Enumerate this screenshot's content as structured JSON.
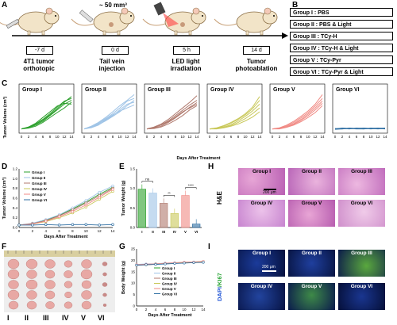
{
  "panels": {
    "A": "A",
    "B": "B",
    "C": "C",
    "D": "D",
    "E": "E",
    "F": "F",
    "G": "G",
    "H": "H",
    "I": "I"
  },
  "timeline": {
    "steps": [
      {
        "day": "-7 d",
        "label": "4T1 tumor\northotopic"
      },
      {
        "day": "0 d",
        "label": "Tail vein\ninjection"
      },
      {
        "day": "5 h",
        "label": "LED light\nirradiation"
      },
      {
        "day": "14 d",
        "label": "Tumor\nphotoablation"
      }
    ],
    "volume_note": "~ 50 mm³"
  },
  "groups_table": [
    "Group I   : PBS",
    "Group II  : PBS & Light",
    "Group III : TCy-H",
    "Group IV  : TCy-H & Light",
    "Group V   : TCy-Pyr",
    "Group VI  : TCy-Pyr & Light"
  ],
  "colors": {
    "I": "#2ca02c",
    "II": "#9ec3e6",
    "III": "#b07a6e",
    "IV": "#c9c85a",
    "V": "#f08a84",
    "VI": "#2f6fa3"
  },
  "chart_data": [
    {
      "type": "line",
      "panel": "C",
      "ylabel": "Tumor Volume (cm³)",
      "xlabel": "Days After Treatment",
      "x": [
        0,
        2,
        4,
        6,
        8,
        10,
        12,
        14
      ],
      "series": [
        {
          "name": "Group I",
          "values": [
            [
              0.05,
              0.1,
              0.18,
              0.3,
              0.45,
              0.62,
              0.78,
              0.85
            ],
            [
              0.05,
              0.08,
              0.15,
              0.25,
              0.4,
              0.55,
              0.7,
              0.8
            ],
            [
              0.05,
              0.1,
              0.2,
              0.35,
              0.5,
              0.65,
              0.72,
              0.7
            ],
            [
              0.05,
              0.07,
              0.12,
              0.22,
              0.35,
              0.48,
              0.6,
              0.75
            ],
            [
              0.05,
              0.09,
              0.17,
              0.28,
              0.42,
              0.58,
              0.75,
              0.9
            ]
          ]
        },
        {
          "name": "Group II",
          "values": [
            [
              0.05,
              0.12,
              0.22,
              0.35,
              0.5,
              0.66,
              0.8,
              0.95
            ],
            [
              0.05,
              0.1,
              0.2,
              0.32,
              0.45,
              0.6,
              0.78,
              0.85
            ],
            [
              0.05,
              0.08,
              0.15,
              0.28,
              0.4,
              0.55,
              0.7,
              0.75
            ],
            [
              0.05,
              0.1,
              0.18,
              0.3,
              0.42,
              0.52,
              0.6,
              0.68
            ],
            [
              0.05,
              0.09,
              0.16,
              0.26,
              0.38,
              0.5,
              0.66,
              0.8
            ]
          ]
        },
        {
          "name": "Group III",
          "values": [
            [
              0.05,
              0.1,
              0.18,
              0.3,
              0.45,
              0.6,
              0.75,
              0.92
            ],
            [
              0.05,
              0.08,
              0.16,
              0.26,
              0.4,
              0.54,
              0.68,
              0.8
            ],
            [
              0.05,
              0.07,
              0.12,
              0.22,
              0.34,
              0.48,
              0.62,
              0.74
            ],
            [
              0.05,
              0.09,
              0.15,
              0.24,
              0.36,
              0.5,
              0.6,
              0.7
            ],
            [
              0.05,
              0.06,
              0.1,
              0.18,
              0.28,
              0.4,
              0.55,
              0.66
            ]
          ]
        },
        {
          "name": "Group IV",
          "values": [
            [
              0.05,
              0.08,
              0.14,
              0.22,
              0.32,
              0.45,
              0.62,
              0.9
            ],
            [
              0.05,
              0.07,
              0.12,
              0.2,
              0.3,
              0.42,
              0.58,
              0.8
            ],
            [
              0.05,
              0.06,
              0.1,
              0.16,
              0.26,
              0.38,
              0.52,
              0.7
            ],
            [
              0.05,
              0.06,
              0.09,
              0.14,
              0.22,
              0.32,
              0.45,
              0.6
            ],
            [
              0.05,
              0.05,
              0.08,
              0.12,
              0.18,
              0.26,
              0.36,
              0.5
            ]
          ]
        },
        {
          "name": "Group V",
          "values": [
            [
              0.05,
              0.08,
              0.15,
              0.25,
              0.38,
              0.52,
              0.7,
              0.95
            ],
            [
              0.05,
              0.07,
              0.13,
              0.22,
              0.34,
              0.48,
              0.65,
              0.85
            ],
            [
              0.05,
              0.06,
              0.11,
              0.19,
              0.3,
              0.44,
              0.6,
              0.78
            ],
            [
              0.05,
              0.06,
              0.1,
              0.17,
              0.27,
              0.4,
              0.55,
              0.72
            ],
            [
              0.05,
              0.05,
              0.09,
              0.15,
              0.24,
              0.35,
              0.48,
              0.66
            ]
          ]
        },
        {
          "name": "Group VI",
          "values": [
            [
              0.05,
              0.06,
              0.05,
              0.07,
              0.06,
              0.05,
              0.06,
              0.05
            ],
            [
              0.06,
              0.05,
              0.07,
              0.06,
              0.07,
              0.06,
              0.05,
              0.06
            ],
            [
              0.04,
              0.05,
              0.06,
              0.05,
              0.05,
              0.07,
              0.06,
              0.07
            ],
            [
              0.05,
              0.07,
              0.06,
              0.06,
              0.05,
              0.06,
              0.07,
              0.06
            ]
          ]
        }
      ]
    },
    {
      "type": "line",
      "panel": "D",
      "xlabel": "Days After Treatment",
      "ylabel": "Tumor Volume (cm³)",
      "x": [
        0,
        2,
        4,
        6,
        8,
        10,
        12,
        14
      ],
      "ylim": [
        0,
        1.2
      ],
      "yticks": [
        "0.0",
        "0.2",
        "0.4",
        "0.6",
        "0.8",
        "1.0",
        "1.2"
      ],
      "series": [
        {
          "name": "Group I",
          "values": [
            0.05,
            0.08,
            0.15,
            0.25,
            0.38,
            0.52,
            0.68,
            0.82
          ]
        },
        {
          "name": "Group II",
          "values": [
            0.05,
            0.09,
            0.16,
            0.26,
            0.4,
            0.55,
            0.72,
            0.85
          ]
        },
        {
          "name": "Group III",
          "values": [
            0.05,
            0.08,
            0.14,
            0.24,
            0.36,
            0.5,
            0.65,
            0.8
          ]
        },
        {
          "name": "Group IV",
          "values": [
            0.05,
            0.07,
            0.12,
            0.2,
            0.3,
            0.42,
            0.58,
            0.74
          ]
        },
        {
          "name": "Group V",
          "values": [
            0.05,
            0.07,
            0.13,
            0.22,
            0.33,
            0.46,
            0.62,
            0.78
          ]
        },
        {
          "name": "Group VI",
          "values": [
            0.05,
            0.05,
            0.06,
            0.05,
            0.06,
            0.06,
            0.05,
            0.06
          ]
        }
      ]
    },
    {
      "type": "bar",
      "panel": "E",
      "ylabel": "Tumor Weight (g)",
      "categories": [
        "I",
        "II",
        "III",
        "IV",
        "V",
        "VI"
      ],
      "values": [
        0.98,
        0.88,
        0.62,
        0.36,
        0.82,
        0.09
      ],
      "ylim": [
        0,
        1.5
      ],
      "yticks": [
        "0.0",
        "0.5",
        "1.0",
        "1.5"
      ],
      "significance": [
        {
          "from": 0,
          "to": 1,
          "label": "ns"
        },
        {
          "from": 2,
          "to": 3,
          "label": "**"
        },
        {
          "from": 4,
          "to": 5,
          "label": "****"
        }
      ]
    },
    {
      "type": "line",
      "panel": "G",
      "xlabel": "Days After Treatment",
      "ylabel": "Body Weight (g)",
      "x": [
        0,
        2,
        4,
        6,
        8,
        10,
        12,
        14
      ],
      "ylim": [
        0,
        25
      ],
      "yticks": [
        "0",
        "5",
        "10",
        "15",
        "20",
        "25"
      ],
      "series": [
        {
          "name": "Group I",
          "values": [
            18,
            18.2,
            18.5,
            18.6,
            18.8,
            19,
            19.2,
            19.5
          ]
        },
        {
          "name": "Group II",
          "values": [
            18.2,
            18.4,
            18.5,
            18.8,
            19,
            19.1,
            19.3,
            19.4
          ]
        },
        {
          "name": "Group III",
          "values": [
            17.8,
            18,
            18.3,
            18.5,
            18.7,
            18.9,
            19,
            19.3
          ]
        },
        {
          "name": "Group IV",
          "values": [
            18,
            18.1,
            18.3,
            18.6,
            18.8,
            19,
            19.1,
            19.2
          ]
        },
        {
          "name": "Group V",
          "values": [
            18.1,
            18.3,
            18.4,
            18.7,
            18.9,
            19.2,
            19.3,
            19.6
          ]
        },
        {
          "name": "Group VI",
          "values": [
            17.9,
            18.1,
            18.2,
            18.4,
            18.6,
            18.8,
            19,
            19.1
          ]
        }
      ]
    }
  ],
  "photo_labels": [
    "I",
    "II",
    "III",
    "IV",
    "V",
    "VI"
  ],
  "he": {
    "label": "H&E",
    "scale": "200 μm",
    "cells": [
      "Group I",
      "Group II",
      "Group III",
      "Group IV",
      "Group V",
      "Group VI"
    ]
  },
  "ki67": {
    "label_dapi": "DAPI",
    "label_ki": "/KI67",
    "scale": "200 μm",
    "cells": [
      "Group I",
      "Group II",
      "Group III",
      "Group IV",
      "Group V",
      "Group VI"
    ]
  }
}
